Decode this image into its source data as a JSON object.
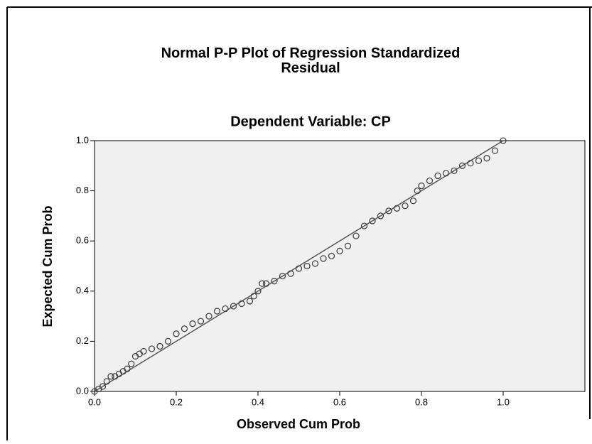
{
  "chart_data": {
    "type": "scatter",
    "title": "Normal P-P Plot of Regression Standardized Residual",
    "subtitle": "Dependent Variable: CP",
    "x_label": "Observed Cum Prob",
    "y_label": "Expected Cum Prob",
    "xlim": [
      0,
      1.2
    ],
    "ylim": [
      0,
      1
    ],
    "xticks": [
      {
        "value": 0,
        "label": "0.0"
      },
      {
        "value": 0.2,
        "label": "0.2"
      },
      {
        "value": 0.4,
        "label": "0.4"
      },
      {
        "value": 0.6,
        "label": "0.6"
      },
      {
        "value": 0.8,
        "label": "0.8"
      },
      {
        "value": 1,
        "label": "1.0"
      }
    ],
    "yticks": [
      {
        "value": 0,
        "label": "0.0"
      },
      {
        "value": 0.2,
        "label": "0.2"
      },
      {
        "value": 0.4,
        "label": "0.4"
      },
      {
        "value": 0.6,
        "label": "0.6"
      },
      {
        "value": 0.8,
        "label": "0.8"
      },
      {
        "value": 1,
        "label": "1.0"
      }
    ],
    "color": "#444444",
    "x": [
      0,
      0.01,
      0.02,
      0.03,
      0.04,
      0.05,
      0.06,
      0.07,
      0.08,
      0.09,
      0.1,
      0.11,
      0.12,
      0.14,
      0.16,
      0.18,
      0.2,
      0.22,
      0.24,
      0.26,
      0.28,
      0.3,
      0.32,
      0.34,
      0.36,
      0.38,
      0.39,
      0.4,
      0.41,
      0.42,
      0.44,
      0.46,
      0.48,
      0.5,
      0.52,
      0.54,
      0.56,
      0.58,
      0.6,
      0.62,
      0.64,
      0.66,
      0.68,
      0.7,
      0.72,
      0.74,
      0.76,
      0.78,
      0.79,
      0.8,
      0.82,
      0.84,
      0.86,
      0.88,
      0.9,
      0.92,
      0.94,
      0.96,
      0.98,
      1.0
    ],
    "values": [
      0,
      0.01,
      0.02,
      0.04,
      0.06,
      0.06,
      0.07,
      0.08,
      0.09,
      0.11,
      0.14,
      0.15,
      0.16,
      0.17,
      0.18,
      0.2,
      0.23,
      0.25,
      0.27,
      0.28,
      0.3,
      0.32,
      0.33,
      0.34,
      0.35,
      0.36,
      0.38,
      0.4,
      0.43,
      0.43,
      0.44,
      0.46,
      0.47,
      0.49,
      0.5,
      0.51,
      0.53,
      0.54,
      0.56,
      0.58,
      0.62,
      0.66,
      0.68,
      0.7,
      0.72,
      0.73,
      0.74,
      0.76,
      0.8,
      0.82,
      0.84,
      0.86,
      0.87,
      0.88,
      0.9,
      0.91,
      0.92,
      0.93,
      0.96,
      1.0
    ]
  }
}
